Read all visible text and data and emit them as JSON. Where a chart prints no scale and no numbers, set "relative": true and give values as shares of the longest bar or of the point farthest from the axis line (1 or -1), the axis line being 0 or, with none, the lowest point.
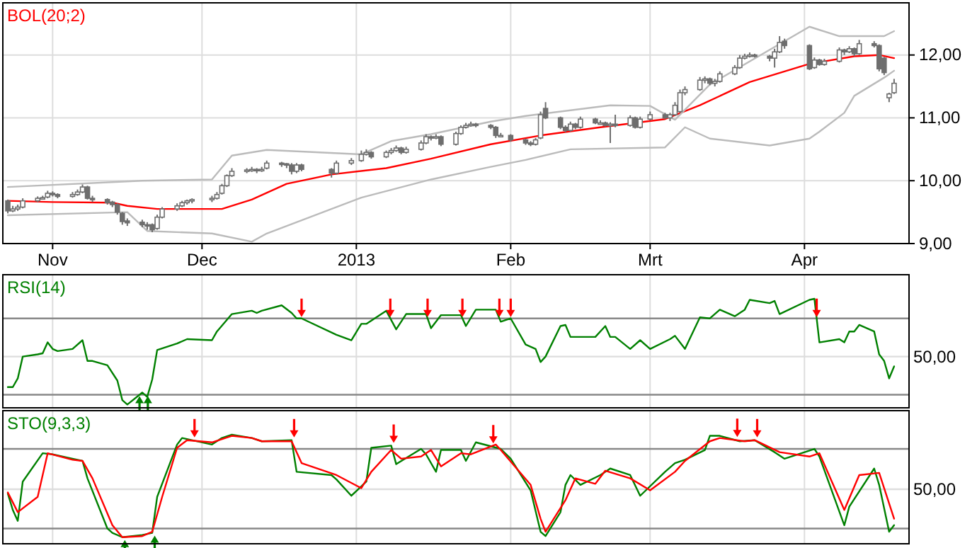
{
  "chart_data": [
    {
      "type": "candlestick",
      "title": "BOL(20;2)",
      "x": [
        "2012-10-23",
        "2012-10-24",
        "2012-10-25",
        "2012-10-26",
        "2012-10-29",
        "2012-10-30",
        "2012-10-31",
        "2012-11-01",
        "2012-11-02",
        "2012-11-05",
        "2012-11-06",
        "2012-11-07",
        "2012-11-08",
        "2012-11-09",
        "2012-11-12",
        "2012-11-13",
        "2012-11-14",
        "2012-11-15",
        "2012-11-16",
        "2012-11-19",
        "2012-11-20",
        "2012-11-21",
        "2012-11-22",
        "2012-11-23",
        "2012-11-26",
        "2012-11-27",
        "2012-11-28",
        "2012-11-29",
        "2012-12-03",
        "2012-12-04",
        "2012-12-05",
        "2012-12-06",
        "2012-12-07",
        "2012-12-10",
        "2012-12-11",
        "2012-12-12",
        "2012-12-13",
        "2012-12-14",
        "2012-12-17",
        "2012-12-18",
        "2012-12-19",
        "2012-12-20",
        "2012-12-21",
        "2012-12-27",
        "2012-12-28",
        "2012-12-31",
        "2013-01-02",
        "2013-01-03",
        "2013-01-04",
        "2013-01-07",
        "2013-01-08",
        "2013-01-09",
        "2013-01-10",
        "2013-01-11",
        "2013-01-14",
        "2013-01-15",
        "2013-01-16",
        "2013-01-17",
        "2013-01-18",
        "2013-01-21",
        "2013-01-22",
        "2013-01-23",
        "2013-01-24",
        "2013-01-25",
        "2013-01-28",
        "2013-01-29",
        "2013-01-30",
        "2013-02-01",
        "2013-02-04",
        "2013-02-05",
        "2013-02-06",
        "2013-02-07",
        "2013-02-08",
        "2013-02-11",
        "2013-02-12",
        "2013-02-13",
        "2013-02-14",
        "2013-02-15",
        "2013-02-18",
        "2013-02-19",
        "2013-02-20",
        "2013-02-21",
        "2013-02-22",
        "2013-02-25",
        "2013-02-26",
        "2013-02-27",
        "2013-03-01",
        "2013-03-04",
        "2013-03-05",
        "2013-03-06",
        "2013-03-07",
        "2013-03-08",
        "2013-03-11",
        "2013-03-12",
        "2013-03-13",
        "2013-03-14",
        "2013-03-15",
        "2013-03-18",
        "2013-03-19",
        "2013-03-20",
        "2013-03-21",
        "2013-03-22",
        "2013-03-25",
        "2013-03-26",
        "2013-03-27",
        "2013-03-28",
        "2013-04-02",
        "2013-04-03",
        "2013-04-04",
        "2013-04-05",
        "2013-04-08",
        "2013-04-09",
        "2013-04-10",
        "2013-04-11",
        "2013-04-12",
        "2013-04-15",
        "2013-04-16",
        "2013-04-17",
        "2013-04-18",
        "2013-04-19"
      ],
      "ohlc": [
        [
          9.68,
          9.7,
          9.48,
          9.52
        ],
        [
          9.52,
          9.6,
          9.5,
          9.55
        ],
        [
          9.55,
          9.62,
          9.52,
          9.58
        ],
        [
          9.58,
          9.72,
          9.56,
          9.68
        ],
        [
          9.68,
          9.75,
          9.66,
          9.72
        ],
        [
          9.72,
          9.76,
          9.7,
          9.73
        ],
        [
          9.74,
          9.84,
          9.72,
          9.8
        ],
        [
          9.8,
          9.83,
          9.75,
          9.78
        ],
        [
          9.78,
          9.8,
          9.72,
          9.75
        ],
        [
          9.75,
          9.82,
          9.73,
          9.78
        ],
        [
          9.78,
          9.86,
          9.76,
          9.82
        ],
        [
          9.82,
          9.94,
          9.8,
          9.9
        ],
        [
          9.9,
          9.92,
          9.7,
          9.72
        ],
        [
          9.72,
          9.76,
          9.66,
          9.7
        ],
        [
          9.7,
          9.72,
          9.62,
          9.65
        ],
        [
          9.66,
          9.68,
          9.58,
          9.62
        ],
        [
          9.62,
          9.64,
          9.46,
          9.5
        ],
        [
          9.48,
          9.5,
          9.3,
          9.35
        ],
        [
          9.36,
          9.4,
          9.28,
          9.33
        ],
        [
          9.34,
          9.38,
          9.26,
          9.3
        ],
        [
          9.3,
          9.34,
          9.22,
          9.28
        ],
        [
          9.3,
          9.32,
          9.18,
          9.22
        ],
        [
          9.24,
          9.46,
          9.22,
          9.42
        ],
        [
          9.42,
          9.58,
          9.4,
          9.55
        ],
        [
          9.55,
          9.64,
          9.52,
          9.6
        ],
        [
          9.6,
          9.68,
          9.58,
          9.65
        ],
        [
          9.65,
          9.7,
          9.62,
          9.68
        ],
        [
          9.68,
          9.72,
          9.64,
          9.7
        ],
        [
          9.7,
          9.76,
          9.66,
          9.72
        ],
        [
          9.72,
          9.82,
          9.7,
          9.78
        ],
        [
          9.8,
          9.95,
          9.78,
          9.92
        ],
        [
          9.92,
          10.1,
          9.9,
          10.08
        ],
        [
          10.08,
          10.2,
          10.06,
          10.15
        ],
        [
          10.15,
          10.2,
          10.12,
          10.17
        ],
        [
          10.17,
          10.22,
          10.14,
          10.18
        ],
        [
          10.18,
          10.2,
          10.12,
          10.17
        ],
        [
          10.16,
          10.22,
          10.14,
          10.18
        ],
        [
          10.2,
          10.32,
          10.18,
          10.28
        ],
        [
          10.28,
          10.3,
          10.22,
          10.27
        ],
        [
          10.27,
          10.28,
          10.2,
          10.25
        ],
        [
          10.25,
          10.28,
          10.1,
          10.15
        ],
        [
          10.15,
          10.28,
          10.12,
          10.25
        ],
        [
          10.25,
          10.27,
          10.15,
          10.18
        ],
        [
          10.18,
          10.2,
          10.05,
          10.12
        ],
        [
          10.12,
          10.32,
          10.1,
          10.28
        ],
        [
          10.28,
          10.36,
          10.25,
          10.32
        ],
        [
          10.32,
          10.48,
          10.3,
          10.42
        ],
        [
          10.42,
          10.5,
          10.4,
          10.45
        ],
        [
          10.45,
          10.47,
          10.35,
          10.38
        ],
        [
          10.38,
          10.48,
          10.36,
          10.45
        ],
        [
          10.45,
          10.52,
          10.42,
          10.48
        ],
        [
          10.48,
          10.56,
          10.46,
          10.52
        ],
        [
          10.52,
          10.54,
          10.42,
          10.45
        ],
        [
          10.45,
          10.54,
          10.43,
          10.5
        ],
        [
          10.5,
          10.64,
          10.48,
          10.6
        ],
        [
          10.6,
          10.74,
          10.58,
          10.7
        ],
        [
          10.7,
          10.72,
          10.64,
          10.68
        ],
        [
          10.68,
          10.74,
          10.66,
          10.7
        ],
        [
          10.7,
          10.72,
          10.55,
          10.58
        ],
        [
          10.58,
          10.78,
          10.56,
          10.75
        ],
        [
          10.75,
          10.88,
          10.73,
          10.85
        ],
        [
          10.85,
          10.92,
          10.83,
          10.88
        ],
        [
          10.88,
          10.94,
          10.86,
          10.9
        ],
        [
          10.9,
          10.92,
          10.85,
          10.88
        ],
        [
          10.88,
          10.9,
          10.82,
          10.85
        ],
        [
          10.85,
          10.87,
          10.68,
          10.72
        ],
        [
          10.72,
          10.76,
          10.7,
          10.72
        ],
        [
          10.72,
          10.74,
          10.62,
          10.65
        ],
        [
          10.65,
          10.67,
          10.57,
          10.6
        ],
        [
          10.6,
          10.63,
          10.55,
          10.58
        ],
        [
          10.58,
          10.68,
          10.56,
          10.65
        ],
        [
          10.68,
          11.1,
          10.66,
          11.05
        ],
        [
          11.15,
          11.25,
          10.98,
          11.0
        ],
        [
          11.0,
          11.02,
          10.82,
          10.85
        ],
        [
          10.85,
          10.88,
          10.77,
          10.8
        ],
        [
          10.8,
          10.94,
          10.78,
          10.9
        ],
        [
          10.9,
          10.92,
          10.82,
          10.85
        ],
        [
          10.85,
          11.02,
          10.83,
          10.98
        ],
        [
          10.98,
          11.0,
          10.9,
          10.92
        ],
        [
          10.92,
          10.96,
          10.9,
          10.92
        ],
        [
          10.92,
          10.94,
          10.86,
          10.88
        ],
        [
          10.88,
          10.93,
          10.6,
          10.9
        ],
        [
          10.9,
          11.05,
          10.85,
          10.88
        ],
        [
          10.88,
          11.04,
          10.86,
          11.0
        ],
        [
          11.0,
          11.02,
          10.83,
          10.85
        ],
        [
          10.85,
          11.02,
          10.83,
          10.98
        ],
        [
          10.98,
          11.1,
          10.96,
          11.05
        ],
        [
          11.05,
          11.08,
          10.98,
          11.0
        ],
        [
          11.0,
          11.08,
          10.95,
          11.05
        ],
        [
          11.05,
          11.25,
          11.03,
          11.2
        ],
        [
          11.1,
          11.45,
          11.08,
          11.4
        ],
        [
          11.4,
          11.5,
          11.36,
          11.45
        ],
        [
          11.45,
          11.65,
          11.43,
          11.6
        ],
        [
          11.6,
          11.66,
          11.55,
          11.62
        ],
        [
          11.62,
          11.64,
          11.52,
          11.55
        ],
        [
          11.55,
          11.62,
          11.5,
          11.58
        ],
        [
          11.58,
          11.74,
          11.56,
          11.7
        ],
        [
          11.7,
          11.84,
          11.68,
          11.8
        ],
        [
          11.8,
          12.0,
          11.78,
          11.95
        ],
        [
          11.95,
          12.02,
          11.93,
          11.98
        ],
        [
          11.98,
          12.04,
          11.96,
          12.0
        ],
        [
          12.0,
          12.02,
          11.96,
          11.98
        ],
        [
          11.98,
          12.0,
          11.9,
          11.95
        ],
        [
          11.95,
          12.1,
          11.8,
          12.05
        ],
        [
          12.05,
          12.3,
          12.03,
          12.2
        ],
        [
          12.22,
          12.26,
          12.1,
          12.15
        ],
        [
          12.15,
          12.17,
          11.76,
          11.78
        ],
        [
          11.8,
          11.96,
          11.78,
          11.92
        ],
        [
          11.92,
          11.94,
          11.83,
          11.85
        ],
        [
          11.85,
          11.94,
          11.83,
          11.9
        ],
        [
          11.9,
          12.12,
          11.88,
          12.08
        ],
        [
          12.08,
          12.1,
          12.0,
          12.05
        ],
        [
          12.05,
          12.14,
          12.03,
          12.1
        ],
        [
          12.1,
          12.12,
          11.98,
          12.02
        ],
        [
          12.02,
          12.24,
          12.0,
          12.18
        ],
        [
          12.18,
          12.22,
          12.12,
          12.15
        ],
        [
          12.15,
          12.17,
          11.74,
          11.78
        ],
        [
          11.95,
          11.97,
          11.68,
          11.72
        ],
        [
          11.32,
          11.4,
          11.25,
          11.38
        ],
        [
          11.4,
          11.62,
          11.38,
          11.55
        ]
      ],
      "series": [
        {
          "type": "line",
          "color": "#ff0000",
          "x": [
            "2012-10-23",
            "2012-11-01",
            "2012-11-13",
            "2012-11-16",
            "2012-11-22",
            "2012-12-05",
            "2012-12-11",
            "2012-12-18",
            "2012-12-27",
            "2013-01-07",
            "2013-01-16",
            "2013-01-28",
            "2013-02-07",
            "2013-02-19",
            "2013-03-04",
            "2013-03-11",
            "2013-03-21",
            "2013-04-02",
            "2013-04-11",
            "2013-04-16",
            "2013-04-19"
          ],
          "values": [
            9.68,
            9.66,
            9.65,
            9.6,
            9.55,
            9.55,
            9.7,
            9.95,
            10.1,
            10.2,
            10.35,
            10.58,
            10.72,
            10.85,
            10.98,
            11.2,
            11.57,
            11.86,
            11.98,
            12.0,
            11.95
          ]
        },
        {
          "type": "line",
          "color": "#bbbbbb",
          "x": [
            "2012-10-23",
            "2012-11-19",
            "2012-12-03",
            "2012-12-07",
            "2012-12-14",
            "2013-01-02",
            "2013-01-08",
            "2013-01-16",
            "2013-01-28",
            "2013-02-04",
            "2013-02-21",
            "2013-03-01",
            "2013-03-06",
            "2013-03-13",
            "2013-04-02",
            "2013-04-08",
            "2013-04-17",
            "2013-04-19"
          ],
          "values": [
            9.9,
            10.0,
            10.02,
            10.4,
            10.49,
            10.42,
            10.63,
            10.74,
            10.94,
            11.03,
            11.2,
            11.19,
            10.97,
            11.53,
            12.45,
            12.3,
            12.3,
            12.38
          ]
        },
        {
          "type": "line",
          "color": "#bbbbbb",
          "x": [
            "2012-10-23",
            "2012-11-16",
            "2012-11-20",
            "2012-12-03",
            "2012-12-11",
            "2012-12-14",
            "2013-01-02",
            "2013-01-16",
            "2013-01-28",
            "2013-02-04",
            "2013-02-13",
            "2013-03-04",
            "2013-03-08",
            "2013-03-13",
            "2013-03-25",
            "2013-04-02",
            "2013-04-04",
            "2013-04-09",
            "2013-04-11",
            "2013-04-17",
            "2013-04-19"
          ],
          "values": [
            9.45,
            9.5,
            9.2,
            9.16,
            9.03,
            9.16,
            9.73,
            10.02,
            10.22,
            10.33,
            10.5,
            10.53,
            10.85,
            10.67,
            10.56,
            10.67,
            10.78,
            11.08,
            11.35,
            11.64,
            11.75
          ]
        }
      ],
      "xlim": [
        "2012-10-22",
        "2013-04-22"
      ],
      "xticks": [
        {
          "value": "2012-11-01",
          "label": "Nov"
        },
        {
          "value": "2012-12-01",
          "label": "Dec"
        },
        {
          "value": "2013-01-01",
          "label": "2013"
        },
        {
          "value": "2013-02-01",
          "label": "Feb"
        },
        {
          "value": "2013-03-01",
          "label": "Mrt"
        },
        {
          "value": "2013-04-01",
          "label": "Apr"
        }
      ],
      "ylim": [
        9,
        12.83
      ],
      "yticks": [
        {
          "value": 9,
          "label": "9,00"
        },
        {
          "value": 10,
          "label": "10,00"
        },
        {
          "value": 11,
          "label": "11,00"
        },
        {
          "value": 12,
          "label": "12,00"
        }
      ],
      "grid": true
    },
    {
      "type": "line",
      "title": "RSI(14)",
      "series": [
        {
          "color": "#008000",
          "x": [
            "2012-10-23",
            "2012-10-24",
            "2012-10-25",
            "2012-10-26",
            "2012-10-29",
            "2012-10-30",
            "2012-10-31",
            "2012-11-01",
            "2012-11-02",
            "2012-11-05",
            "2012-11-07",
            "2012-11-08",
            "2012-11-09",
            "2012-11-12",
            "2012-11-14",
            "2012-11-15",
            "2012-11-16",
            "2012-11-19",
            "2012-11-20",
            "2012-11-21",
            "2012-11-22",
            "2012-11-26",
            "2012-11-28",
            "2012-12-03",
            "2012-12-04",
            "2012-12-07",
            "2012-12-11",
            "2012-12-12",
            "2012-12-13",
            "2012-12-17",
            "2012-12-19",
            "2012-12-20",
            "2012-12-21",
            "2012-12-28",
            "2012-12-31",
            "2013-01-02",
            "2013-01-03",
            "2013-01-07",
            "2013-01-09",
            "2013-01-11",
            "2013-01-15",
            "2013-01-16",
            "2013-01-18",
            "2013-01-22",
            "2013-01-23",
            "2013-01-25",
            "2013-01-29",
            "2013-01-30",
            "2013-02-01",
            "2013-02-04",
            "2013-02-06",
            "2013-02-07",
            "2013-02-08",
            "2013-02-11",
            "2013-02-12",
            "2013-02-13",
            "2013-02-18",
            "2013-02-20",
            "2013-02-21",
            "2013-02-22",
            "2013-02-25",
            "2013-02-27",
            "2013-03-01",
            "2013-03-05",
            "2013-03-06",
            "2013-03-08",
            "2013-03-11",
            "2013-03-13",
            "2013-03-15",
            "2013-03-18",
            "2013-03-20",
            "2013-03-21",
            "2013-03-25",
            "2013-03-26",
            "2013-03-27",
            "2013-04-02",
            "2013-04-03",
            "2013-04-04",
            "2013-04-08",
            "2013-04-09",
            "2013-04-10",
            "2013-04-11",
            "2013-04-12",
            "2013-04-15",
            "2013-04-16",
            "2013-04-17",
            "2013-04-18",
            "2013-04-19"
          ],
          "values": [
            0.19,
            0.19,
            0.27,
            0.47,
            0.49,
            0.5,
            0.6,
            0.54,
            0.52,
            0.54,
            0.62,
            0.43,
            0.43,
            0.39,
            0.25,
            0.07,
            0.03,
            0.14,
            0.1,
            0.26,
            0.53,
            0.59,
            0.63,
            0.62,
            0.7,
            0.86,
            0.89,
            0.87,
            0.89,
            0.94,
            0.87,
            0.82,
            0.82,
            0.67,
            0.62,
            0.77,
            0.77,
            0.89,
            0.72,
            0.86,
            0.86,
            0.73,
            0.85,
            0.85,
            0.75,
            0.9,
            0.9,
            0.79,
            0.82,
            0.58,
            0.54,
            0.42,
            0.47,
            0.75,
            0.76,
            0.65,
            0.65,
            0.75,
            0.65,
            0.65,
            0.54,
            0.62,
            0.54,
            0.63,
            0.66,
            0.54,
            0.83,
            0.82,
            0.9,
            0.84,
            0.9,
            0.99,
            0.96,
            0.98,
            0.86,
            0.99,
            1,
            0.6,
            0.63,
            0.6,
            0.7,
            0.7,
            0.76,
            0.7,
            0.49,
            0.43,
            0.27,
            0.38
          ]
        }
      ],
      "xlim": [
        "2012-10-22",
        "2013-04-22"
      ],
      "xticks": [
        {
          "value": "2012-11-01",
          "label": null
        },
        {
          "value": "2012-12-01",
          "label": null
        },
        {
          "value": "2013-01-01",
          "label": null
        },
        {
          "value": "2013-02-01",
          "label": null
        },
        {
          "value": "2013-03-01",
          "label": null
        },
        {
          "value": "2013-04-01",
          "label": null
        }
      ],
      "relative": true,
      "tick_labels": false,
      "grid": "x",
      "annotations": [
        "50,00"
      ],
      "ref_lines": [
        {
          "axis": "y",
          "value": 0.82,
          "color": "#888888"
        },
        {
          "axis": "y",
          "value": 0.12,
          "color": "#888888"
        },
        {
          "axis": "y",
          "value": 0.47,
          "color": "#dddddd"
        }
      ]
    },
    {
      "type": "line",
      "title": "STO(9,3,3)",
      "series": [
        {
          "color": "#008000",
          "x": [
            "2012-10-23",
            "2012-10-24",
            "2012-10-25",
            "2012-10-26",
            "2012-10-30",
            "2012-11-01",
            "2012-11-05",
            "2012-11-07",
            "2012-11-08",
            "2012-11-12",
            "2012-11-13",
            "2012-11-15",
            "2012-11-19",
            "2012-11-21",
            "2012-11-22",
            "2012-11-26",
            "2012-11-27",
            "2012-12-03",
            "2012-12-05",
            "2012-12-07",
            "2012-12-11",
            "2012-12-13",
            "2012-12-19",
            "2012-12-20",
            "2012-12-27",
            "2012-12-28",
            "2012-12-31",
            "2013-01-03",
            "2013-01-04",
            "2013-01-08",
            "2013-01-09",
            "2013-01-14",
            "2013-01-15",
            "2013-01-17",
            "2013-01-18",
            "2013-01-22",
            "2013-01-23",
            "2013-01-25",
            "2013-01-30",
            "2013-02-01",
            "2013-02-05",
            "2013-02-07",
            "2013-02-08",
            "2013-02-11",
            "2013-02-12",
            "2013-02-13",
            "2013-02-15",
            "2013-02-19",
            "2013-02-21",
            "2013-02-25",
            "2013-02-27",
            "2013-03-04",
            "2013-03-06",
            "2013-03-08",
            "2013-03-12",
            "2013-03-13",
            "2013-03-15",
            "2013-03-19",
            "2013-03-22",
            "2013-03-26",
            "2013-03-28",
            "2013-04-03",
            "2013-04-04",
            "2013-04-09",
            "2013-04-10",
            "2013-04-15",
            "2013-04-16",
            "2013-04-18",
            "2013-04-19"
          ],
          "values": [
            0.46,
            0.31,
            0.21,
            0.57,
            0.83,
            0.82,
            0.78,
            0.76,
            0.6,
            0.14,
            0.1,
            0.06,
            0.08,
            0.1,
            0.43,
            0.91,
            0.97,
            0.91,
            0.97,
            1,
            0.97,
            0.94,
            0.95,
            0.66,
            0.63,
            0.59,
            0.44,
            0.57,
            0.88,
            0.9,
            0.73,
            0.87,
            0.82,
            0.66,
            0.86,
            0.86,
            0.76,
            0.93,
            0.87,
            0.78,
            0.49,
            0.11,
            0.07,
            0.29,
            0.54,
            0.63,
            0.54,
            0.63,
            0.69,
            0.63,
            0.44,
            0.66,
            0.74,
            0.77,
            0.86,
            0.99,
            0.99,
            0.94,
            0.95,
            0.84,
            0.78,
            0.87,
            0.8,
            0.17,
            0.34,
            0.69,
            0.54,
            0.11,
            0.17
          ]
        },
        {
          "color": "#ff0000",
          "x": [
            "2012-10-23",
            "2012-10-25",
            "2012-10-29",
            "2012-10-31",
            "2012-11-05",
            "2012-11-07",
            "2012-11-09",
            "2012-11-13",
            "2012-11-15",
            "2012-11-19",
            "2012-11-21",
            "2012-11-23",
            "2012-11-26",
            "2012-11-28",
            "2012-12-03",
            "2012-12-07",
            "2012-12-11",
            "2012-12-13",
            "2012-12-19",
            "2012-12-21",
            "2012-12-28",
            "2013-01-02",
            "2013-01-04",
            "2013-01-08",
            "2013-01-10",
            "2013-01-14",
            "2013-01-16",
            "2013-01-18",
            "2013-01-22",
            "2013-01-24",
            "2013-01-29",
            "2013-01-30",
            "2013-02-05",
            "2013-02-07",
            "2013-02-08",
            "2013-02-12",
            "2013-02-14",
            "2013-02-18",
            "2013-02-20",
            "2013-02-25",
            "2013-03-01",
            "2013-03-06",
            "2013-03-08",
            "2013-03-13",
            "2013-03-15",
            "2013-03-20",
            "2013-03-22",
            "2013-03-27",
            "2013-04-02",
            "2013-04-04",
            "2013-04-09",
            "2013-04-12",
            "2013-04-16",
            "2013-04-19"
          ],
          "values": [
            0.47,
            0.29,
            0.43,
            0.83,
            0.77,
            0.76,
            0.6,
            0.17,
            0.06,
            0.07,
            0.11,
            0.43,
            0.88,
            0.95,
            0.93,
            0.99,
            0.97,
            0.94,
            0.94,
            0.74,
            0.63,
            0.51,
            0.66,
            0.86,
            0.78,
            0.8,
            0.86,
            0.71,
            0.83,
            0.82,
            0.91,
            0.86,
            0.54,
            0.23,
            0.11,
            0.4,
            0.6,
            0.55,
            0.67,
            0.6,
            0.49,
            0.66,
            0.76,
            0.94,
            0.97,
            0.94,
            0.95,
            0.84,
            0.8,
            0.83,
            0.31,
            0.63,
            0.65,
            0.23
          ]
        }
      ],
      "xlim": [
        "2012-10-22",
        "2013-04-22"
      ],
      "xticks": [
        {
          "value": "2012-11-01",
          "label": null
        },
        {
          "value": "2012-12-01",
          "label": null
        },
        {
          "value": "2013-01-01",
          "label": null
        },
        {
          "value": "2013-02-01",
          "label": null
        },
        {
          "value": "2013-03-01",
          "label": null
        },
        {
          "value": "2013-04-01",
          "label": null
        }
      ],
      "relative": true,
      "tick_labels": false,
      "grid": "x",
      "annotations": [
        "50,00"
      ],
      "ref_lines": [
        {
          "axis": "y",
          "value": 0.87,
          "color": "#888888"
        },
        {
          "axis": "y",
          "value": 0.14,
          "color": "#888888"
        },
        {
          "axis": "y",
          "value": 0.5,
          "color": "#dddddd"
        }
      ]
    }
  ]
}
